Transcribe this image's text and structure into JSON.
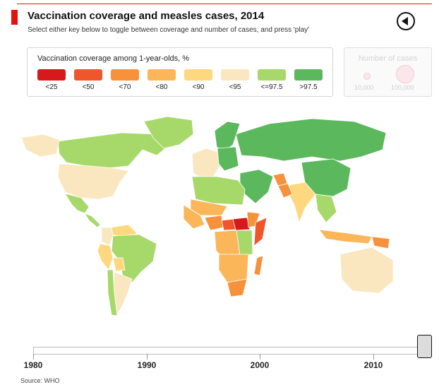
{
  "header": {
    "title": "Vaccination coverage and measles cases, 2014",
    "subtitle": "Select either key below to toggle between coverage and number of cases, and press 'play'"
  },
  "colors": {
    "accent": "#e3120b"
  },
  "legend": {
    "title": "Vaccination coverage among 1-year-olds, %",
    "items": [
      {
        "label": "<25",
        "color": "#d7191c"
      },
      {
        "label": "<50",
        "color": "#f0562b"
      },
      {
        "label": "<70",
        "color": "#f7913a"
      },
      {
        "label": "<80",
        "color": "#fbb65a"
      },
      {
        "label": "<90",
        "color": "#fdd87e"
      },
      {
        "label": "<95",
        "color": "#fbe7bf"
      },
      {
        "label": "<=97.5",
        "color": "#a6d96a"
      },
      {
        "label": ">97.5",
        "color": "#5cb85c"
      }
    ]
  },
  "cases_key": {
    "title": "Number of cases",
    "small_label": "10,000",
    "large_label": "100,000"
  },
  "chart_data": {
    "type": "choropleth-map",
    "title": "Vaccination coverage and measles cases, 2014",
    "year": 2014,
    "metric": "Vaccination coverage among 1-year-olds, %",
    "bins": [
      "<25",
      "<50",
      "<70",
      "<80",
      "<90",
      "<95",
      "<=97.5",
      ">97.5"
    ],
    "regions": [
      {
        "name": "Canada",
        "bin": "<=97.5"
      },
      {
        "name": "Greenland",
        "bin": "<=97.5"
      },
      {
        "name": "United States",
        "bin": "<95"
      },
      {
        "name": "Alaska",
        "bin": "<95"
      },
      {
        "name": "Mexico",
        "bin": "<=97.5"
      },
      {
        "name": "Central America",
        "bin": "<=97.5"
      },
      {
        "name": "Venezuela",
        "bin": "<90"
      },
      {
        "name": "Colombia",
        "bin": "<95"
      },
      {
        "name": "Brazil",
        "bin": "<=97.5"
      },
      {
        "name": "Peru",
        "bin": "<90"
      },
      {
        "name": "Bolivia",
        "bin": "<90"
      },
      {
        "name": "Argentina",
        "bin": "<95"
      },
      {
        "name": "Chile",
        "bin": "<=97.5"
      },
      {
        "name": "Russia",
        "bin": ">97.5"
      },
      {
        "name": "Scandinavia",
        "bin": ">97.5"
      },
      {
        "name": "Western Europe",
        "bin": "<95"
      },
      {
        "name": "Eastern Europe",
        "bin": ">97.5"
      },
      {
        "name": "China",
        "bin": ">97.5"
      },
      {
        "name": "India",
        "bin": "<90"
      },
      {
        "name": "Middle East",
        "bin": ">97.5"
      },
      {
        "name": "Afghanistan",
        "bin": "<70"
      },
      {
        "name": "Pakistan",
        "bin": "<70"
      },
      {
        "name": "North Africa",
        "bin": "<=97.5"
      },
      {
        "name": "Sahel",
        "bin": "<80"
      },
      {
        "name": "West Africa",
        "bin": "<80"
      },
      {
        "name": "Nigeria",
        "bin": "<70"
      },
      {
        "name": "Central African Republic",
        "bin": "<50"
      },
      {
        "name": "South Sudan",
        "bin": "<25"
      },
      {
        "name": "Ethiopia",
        "bin": "<70"
      },
      {
        "name": "Somalia",
        "bin": "<50"
      },
      {
        "name": "DR Congo",
        "bin": "<80"
      },
      {
        "name": "East Africa",
        "bin": "<=97.5"
      },
      {
        "name": "Southern Africa",
        "bin": "<80"
      },
      {
        "name": "South Africa",
        "bin": "<70"
      },
      {
        "name": "Madagascar",
        "bin": "<70"
      },
      {
        "name": "Southeast Asia",
        "bin": "<=97.5"
      },
      {
        "name": "Indonesia",
        "bin": "<80"
      },
      {
        "name": "Papua New Guinea",
        "bin": "<70"
      },
      {
        "name": "Australia",
        "bin": "<95"
      },
      {
        "name": "New Zealand",
        "bin": "<95"
      }
    ]
  },
  "timeline": {
    "start": 1980,
    "end": 2014,
    "current": 2014,
    "ticks": [
      "1980",
      "1990",
      "2000",
      "2010"
    ]
  },
  "source": "Source: WHO"
}
